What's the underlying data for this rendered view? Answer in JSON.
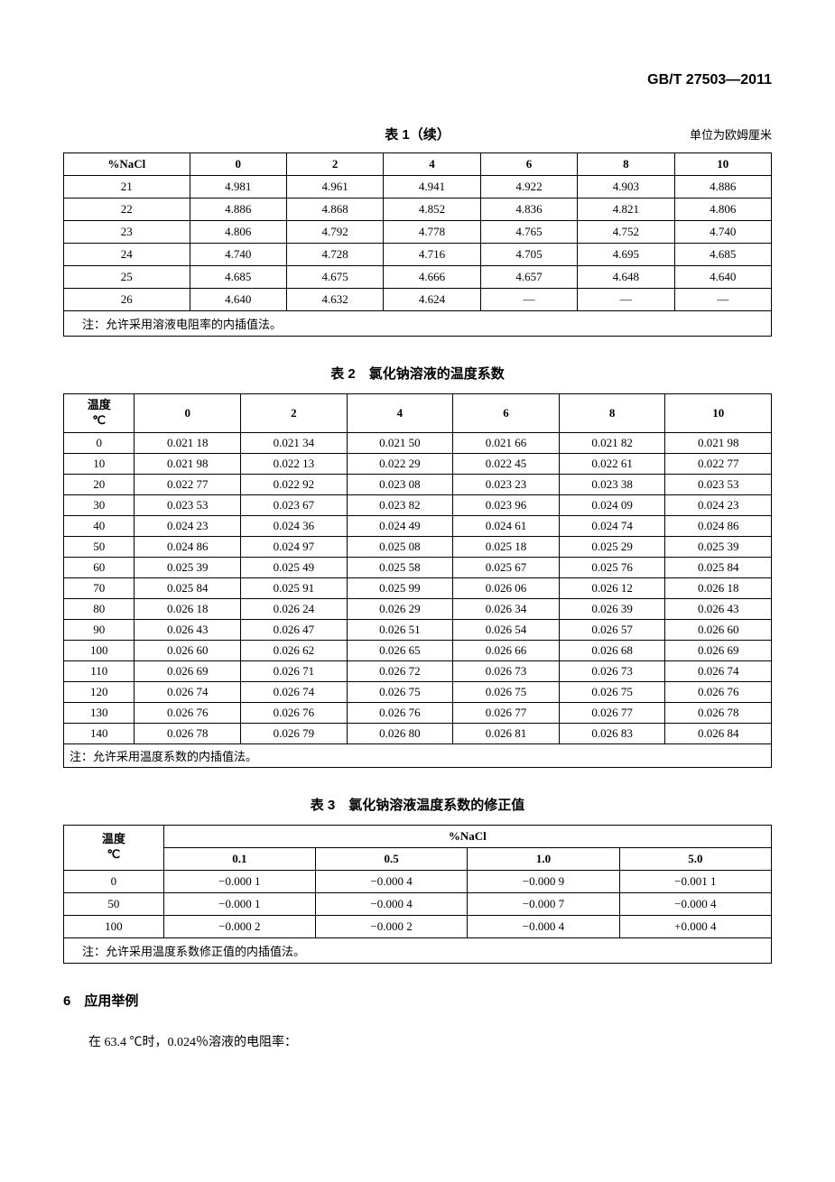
{
  "doc_number": "GB/T 27503—2011",
  "table1": {
    "caption": "表 1（续）",
    "unit_label": "单位为欧姆厘米",
    "headers": [
      "%NaCl",
      "0",
      "2",
      "4",
      "6",
      "8",
      "10"
    ],
    "rows": [
      [
        "21",
        "4.981",
        "4.961",
        "4.941",
        "4.922",
        "4.903",
        "4.886"
      ],
      [
        "22",
        "4.886",
        "4.868",
        "4.852",
        "4.836",
        "4.821",
        "4.806"
      ],
      [
        "23",
        "4.806",
        "4.792",
        "4.778",
        "4.765",
        "4.752",
        "4.740"
      ],
      [
        "24",
        "4.740",
        "4.728",
        "4.716",
        "4.705",
        "4.695",
        "4.685"
      ],
      [
        "25",
        "4.685",
        "4.675",
        "4.666",
        "4.657",
        "4.648",
        "4.640"
      ],
      [
        "26",
        "4.640",
        "4.632",
        "4.624",
        "—",
        "—",
        "—"
      ]
    ],
    "note": "注：允许采用溶液电阻率的内插值法。"
  },
  "table2": {
    "caption": "表 2　氯化钠溶液的温度系数",
    "header_label_line1": "温度",
    "header_label_line2": "℃",
    "col_headers": [
      "0",
      "2",
      "4",
      "6",
      "8",
      "10"
    ],
    "rows": [
      [
        "0",
        "0.021 18",
        "0.021 34",
        "0.021 50",
        "0.021 66",
        "0.021 82",
        "0.021 98"
      ],
      [
        "10",
        "0.021 98",
        "0.022 13",
        "0.022 29",
        "0.022 45",
        "0.022 61",
        "0.022 77"
      ],
      [
        "20",
        "0.022 77",
        "0.022 92",
        "0.023 08",
        "0.023 23",
        "0.023 38",
        "0.023 53"
      ],
      [
        "30",
        "0.023 53",
        "0.023 67",
        "0.023 82",
        "0.023 96",
        "0.024 09",
        "0.024 23"
      ],
      [
        "40",
        "0.024 23",
        "0.024 36",
        "0.024 49",
        "0.024 61",
        "0.024 74",
        "0.024 86"
      ],
      [
        "50",
        "0.024 86",
        "0.024 97",
        "0.025 08",
        "0.025 18",
        "0.025 29",
        "0.025 39"
      ],
      [
        "60",
        "0.025 39",
        "0.025 49",
        "0.025 58",
        "0.025 67",
        "0.025 76",
        "0.025 84"
      ],
      [
        "70",
        "0.025 84",
        "0.025 91",
        "0.025 99",
        "0.026 06",
        "0.026 12",
        "0.026 18"
      ],
      [
        "80",
        "0.026 18",
        "0.026 24",
        "0.026 29",
        "0.026 34",
        "0.026 39",
        "0.026 43"
      ],
      [
        "90",
        "0.026 43",
        "0.026 47",
        "0.026 51",
        "0.026 54",
        "0.026 57",
        "0.026 60"
      ],
      [
        "100",
        "0.026 60",
        "0.026 62",
        "0.026 65",
        "0.026 66",
        "0.026 68",
        "0.026 69"
      ],
      [
        "110",
        "0.026 69",
        "0.026 71",
        "0.026 72",
        "0.026 73",
        "0.026 73",
        "0.026 74"
      ],
      [
        "120",
        "0.026 74",
        "0.026 74",
        "0.026 75",
        "0.026 75",
        "0.026 75",
        "0.026 76"
      ],
      [
        "130",
        "0.026 76",
        "0.026 76",
        "0.026 76",
        "0.026 77",
        "0.026 77",
        "0.026 78"
      ],
      [
        "140",
        "0.026 78",
        "0.026 79",
        "0.026 80",
        "0.026 81",
        "0.026 83",
        "0.026 84"
      ]
    ],
    "note": "注：允许采用温度系数的内插值法。"
  },
  "table3": {
    "caption": "表 3　氯化钠溶液温度系数的修正值",
    "header_label_line1": "温度",
    "header_label_line2": "℃",
    "super_header": "%NaCl",
    "col_headers": [
      "0.1",
      "0.5",
      "1.0",
      "5.0"
    ],
    "rows": [
      [
        "0",
        "−0.000 1",
        "−0.000 4",
        "−0.000 9",
        "−0.001 1"
      ],
      [
        "50",
        "−0.000 1",
        "−0.000 4",
        "−0.000 7",
        "−0.000 4"
      ],
      [
        "100",
        "−0.000 2",
        "−0.000 2",
        "−0.000 4",
        "+0.000 4"
      ]
    ],
    "note": "注：允许采用温度系数修正值的内插值法。"
  },
  "section6": {
    "heading": "6　应用举例",
    "body": "在 63.4 ℃时，0.024％溶液的电阻率："
  }
}
